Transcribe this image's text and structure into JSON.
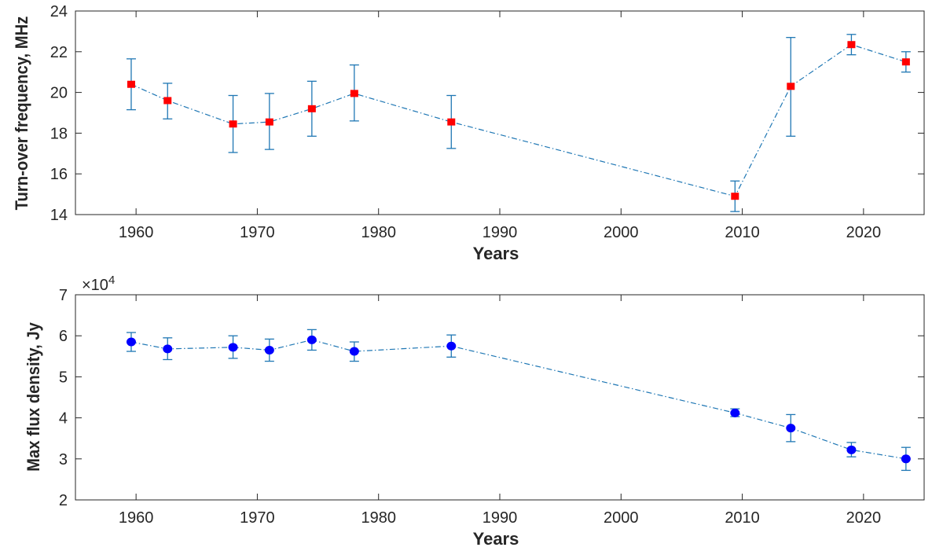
{
  "chart_data": [
    {
      "type": "line",
      "xlabel": "Years",
      "ylabel": "Turn-over frequency, MHz",
      "xlim": [
        1955,
        2025
      ],
      "ylim": [
        14,
        24
      ],
      "xticks": [
        "1960",
        "1970",
        "1980",
        "1990",
        "2000",
        "2010",
        "2020"
      ],
      "yticks": [
        "14",
        "16",
        "18",
        "20",
        "22",
        "24"
      ],
      "marker": "square",
      "marker_color": "#ff0000",
      "line_color": "#1f77b4",
      "line_style": "dash-dot",
      "grid": false,
      "x": [
        1959.6,
        1962.6,
        1968.0,
        1971.0,
        1974.5,
        1978.0,
        1986.0,
        2009.4,
        2014.0,
        2019.0,
        2023.5
      ],
      "y": [
        20.4,
        19.6,
        18.45,
        18.55,
        19.2,
        19.95,
        18.55,
        14.9,
        20.3,
        22.35,
        21.5
      ],
      "err_low": [
        19.15,
        18.7,
        17.05,
        17.2,
        17.85,
        18.6,
        17.25,
        14.15,
        17.85,
        21.85,
        21.0
      ],
      "err_high": [
        21.65,
        20.45,
        19.85,
        19.95,
        20.55,
        21.35,
        19.85,
        15.65,
        22.7,
        22.85,
        22.0
      ]
    },
    {
      "type": "line",
      "xlabel": "Years",
      "ylabel": "Max flux density, Jy",
      "multiplier": "×10",
      "multiplier_exp": "4",
      "xlim": [
        1955,
        2025
      ],
      "ylim": [
        2,
        7
      ],
      "xticks": [
        "1960",
        "1970",
        "1980",
        "1990",
        "2000",
        "2010",
        "2020"
      ],
      "yticks": [
        "2",
        "3",
        "4",
        "5",
        "6",
        "7"
      ],
      "marker": "circle",
      "marker_color": "#0000ff",
      "line_color": "#1f77b4",
      "line_style": "dash-dot",
      "grid": false,
      "x": [
        1959.6,
        1962.6,
        1968.0,
        1971.0,
        1974.5,
        1978.0,
        1986.0,
        2009.4,
        2014.0,
        2019.0,
        2023.5
      ],
      "y": [
        5.85,
        5.68,
        5.72,
        5.65,
        5.9,
        5.62,
        5.75,
        4.12,
        3.75,
        3.22,
        3.0
      ],
      "err_low": [
        5.62,
        5.42,
        5.45,
        5.38,
        5.65,
        5.38,
        5.48,
        4.03,
        3.42,
        3.05,
        2.72
      ],
      "err_high": [
        6.08,
        5.95,
        6.0,
        5.92,
        6.15,
        5.85,
        6.02,
        4.22,
        4.08,
        3.4,
        3.28
      ]
    }
  ]
}
